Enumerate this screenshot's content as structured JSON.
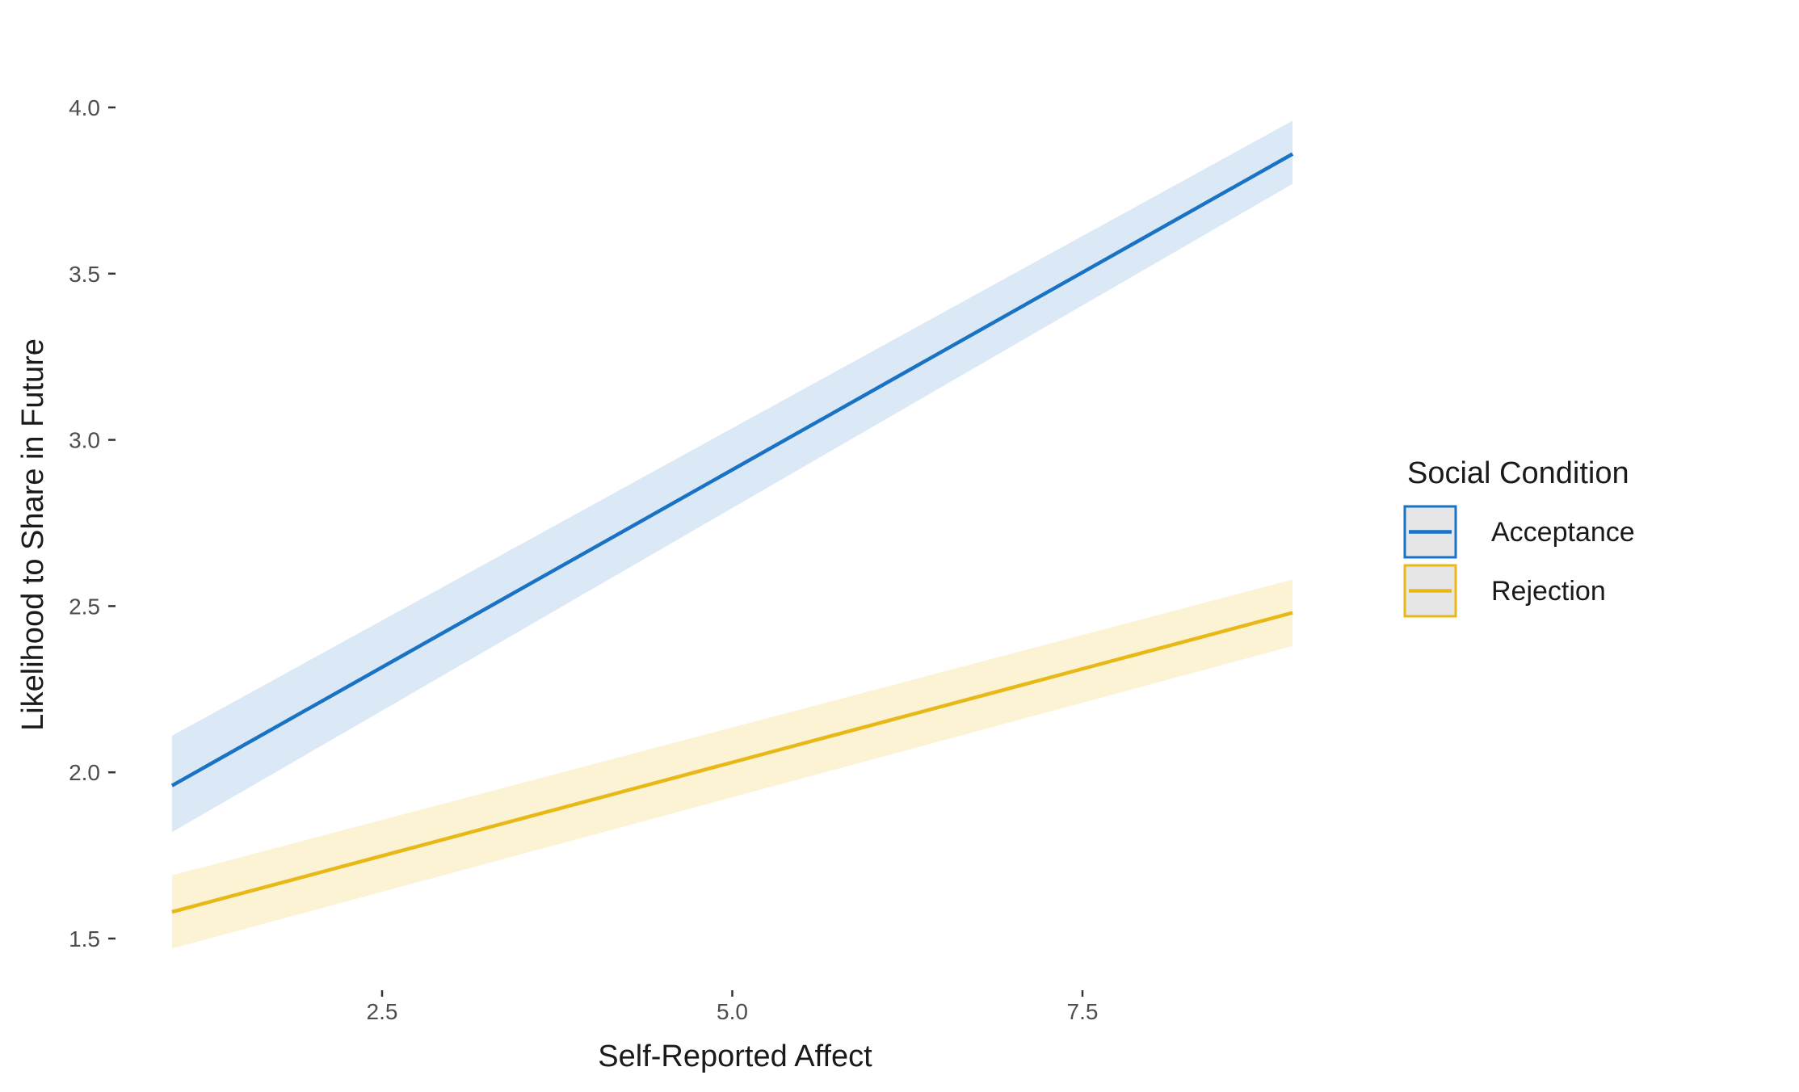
{
  "chart_data": {
    "type": "line",
    "xlabel": "Self-Reported Affect",
    "ylabel": "Likelihood to Share in Future",
    "xlim": [
      1,
      9
    ],
    "ylim": [
      1.5,
      4.0
    ],
    "x_ticks": [
      {
        "value": 2.5,
        "label": "2.5"
      },
      {
        "value": 5.0,
        "label": "5.0"
      },
      {
        "value": 7.5,
        "label": "7.5"
      }
    ],
    "y_ticks": [
      {
        "value": 1.5,
        "label": "1.5"
      },
      {
        "value": 2.0,
        "label": "2.0"
      },
      {
        "value": 2.5,
        "label": "2.5"
      },
      {
        "value": 3.0,
        "label": "3.0"
      },
      {
        "value": 3.5,
        "label": "3.5"
      },
      {
        "value": 4.0,
        "label": "4.0"
      }
    ],
    "grid": false,
    "legend": {
      "title": "Social Condition",
      "placement": "right"
    },
    "series": [
      {
        "name": "Acceptance",
        "color": "#1a72c4",
        "band_color": "#dbe8f6",
        "x": [
          1,
          9
        ],
        "y": [
          1.96,
          3.86
        ],
        "ci_lower": [
          1.82,
          3.77
        ],
        "ci_upper": [
          2.11,
          3.96
        ]
      },
      {
        "name": "Rejection",
        "color": "#e8b817",
        "band_color": "#fcf2d4",
        "x": [
          1,
          9
        ],
        "y": [
          1.58,
          2.48
        ],
        "ci_lower": [
          1.47,
          2.38
        ],
        "ci_upper": [
          1.69,
          2.58
        ]
      }
    ]
  }
}
